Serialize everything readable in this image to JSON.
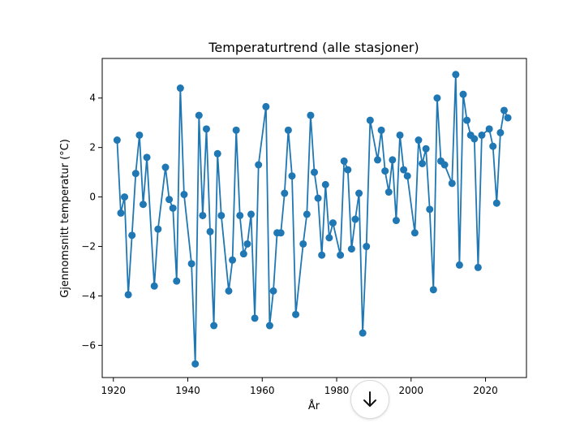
{
  "chart_data": {
    "type": "line",
    "title": "Temperaturtrend (alle stasjoner)",
    "xlabel": "År",
    "ylabel": "Gjennomsnitt temperatur (°C)",
    "xlim": [
      1917,
      2031
    ],
    "ylim": [
      -7.3,
      5.6
    ],
    "x_ticks": [
      1920,
      1940,
      1960,
      1980,
      2000,
      2020
    ],
    "y_ticks": [
      -6,
      -4,
      -2,
      0,
      2,
      4
    ],
    "y_tick_labels": [
      "−6",
      "−4",
      "−2",
      "0",
      "2",
      "4"
    ],
    "grid": false,
    "line_color": "#1f77b4",
    "series": [
      {
        "name": "Gjennomsnitt temperatur",
        "x": [
          1921,
          1922,
          1923,
          1924,
          1925,
          1926,
          1927,
          1928,
          1929,
          1931,
          1932,
          1934,
          1935,
          1936,
          1937,
          1938,
          1939,
          1941,
          1942,
          1943,
          1944,
          1945,
          1946,
          1947,
          1948,
          1949,
          1951,
          1952,
          1953,
          1954,
          1955,
          1956,
          1957,
          1958,
          1959,
          1961,
          1962,
          1963,
          1964,
          1965,
          1966,
          1967,
          1968,
          1969,
          1971,
          1972,
          1973,
          1974,
          1975,
          1976,
          1977,
          1978,
          1979,
          1981,
          1982,
          1983,
          1984,
          1985,
          1986,
          1987,
          1988,
          1989,
          1991,
          1992,
          1993,
          1994,
          1995,
          1996,
          1997,
          1998,
          1999,
          2001,
          2002,
          2003,
          2004,
          2005,
          2006,
          2007,
          2008,
          2009,
          2011,
          2012,
          2013,
          2014,
          2015,
          2016,
          2017,
          2018,
          2019,
          2021,
          2022,
          2023,
          2024,
          2025,
          2026
        ],
        "y": [
          2.3,
          -0.65,
          0.0,
          -3.95,
          -1.55,
          0.95,
          2.5,
          -0.3,
          1.6,
          -3.6,
          -1.3,
          1.2,
          -0.1,
          -0.45,
          -3.4,
          4.4,
          0.1,
          -2.7,
          -6.75,
          3.3,
          -0.75,
          2.75,
          -1.4,
          -5.2,
          1.75,
          -0.75,
          -3.8,
          -2.55,
          2.7,
          -0.75,
          -2.3,
          -1.9,
          -0.7,
          -4.9,
          1.3,
          3.65,
          -5.2,
          -3.8,
          -1.45,
          -1.45,
          0.15,
          2.7,
          0.85,
          -4.75,
          -1.9,
          -0.7,
          3.3,
          1.0,
          -0.05,
          -2.35,
          0.5,
          -1.65,
          -1.05,
          -2.35,
          1.45,
          1.1,
          -2.1,
          -0.9,
          0.15,
          -5.5,
          -2.0,
          3.1,
          1.5,
          2.7,
          1.05,
          0.2,
          1.5,
          -0.95,
          2.5,
          1.1,
          0.85,
          -1.45,
          2.3,
          1.35,
          1.95,
          -0.5,
          -3.75,
          4.0,
          1.45,
          1.3,
          0.55,
          4.95,
          -2.75,
          4.15,
          3.1,
          2.5,
          2.35,
          -2.85,
          2.5,
          2.75,
          2.05,
          -0.25,
          2.6,
          3.5,
          3.2
        ]
      }
    ]
  },
  "scroll_button": {
    "icon": "arrow-down-icon"
  }
}
